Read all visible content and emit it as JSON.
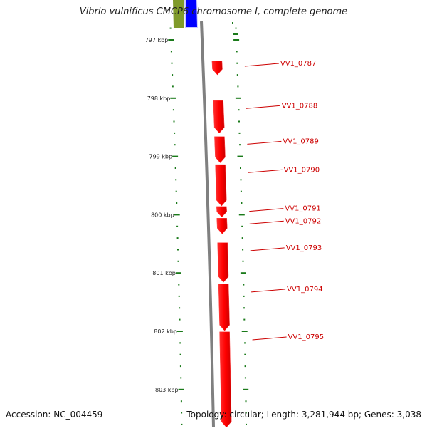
{
  "title": "Vibrio vulnificus CMCP6 chromosome I, complete genome",
  "accession": "Accession: NC_004459",
  "summary": "Topology: circular; Length: 3,281,944 bp; Genes: 3,038",
  "colors": {
    "gene": "#ff0000",
    "label": "#cc0000",
    "tick": "#1a7a1a",
    "backbone": "#808080",
    "feature_olive": "#7f9a2a",
    "feature_blue": "#0000ff",
    "feature_lightblue": "#c8c8ff"
  },
  "axis": {
    "unit": "kbp",
    "ticks": [
      {
        "kbp": 797,
        "label": "797 kbp"
      },
      {
        "kbp": 798,
        "label": "798 kbp"
      },
      {
        "kbp": 799,
        "label": "799 kbp"
      },
      {
        "kbp": 800,
        "label": "800 kbp"
      },
      {
        "kbp": 801,
        "label": "801 kbp"
      },
      {
        "kbp": 802,
        "label": "802 kbp"
      },
      {
        "kbp": 803,
        "label": "803 kbp"
      }
    ]
  },
  "genes": [
    {
      "label": "VV1_0787",
      "start_kbp": 797.36,
      "end_kbp": 797.6,
      "strand": "+"
    },
    {
      "label": "VV1_0788",
      "start_kbp": 798.04,
      "end_kbp": 798.6,
      "strand": "+"
    },
    {
      "label": "VV1_0789",
      "start_kbp": 798.66,
      "end_kbp": 799.11,
      "strand": "+"
    },
    {
      "label": "VV1_0790",
      "start_kbp": 799.14,
      "end_kbp": 799.85,
      "strand": "+"
    },
    {
      "label": "VV1_0791",
      "start_kbp": 799.86,
      "end_kbp": 800.04,
      "strand": "+"
    },
    {
      "label": "VV1_0792",
      "start_kbp": 800.06,
      "end_kbp": 800.33,
      "strand": "+"
    },
    {
      "label": "VV1_0793",
      "start_kbp": 800.48,
      "end_kbp": 801.16,
      "strand": "+"
    },
    {
      "label": "VV1_0794",
      "start_kbp": 801.19,
      "end_kbp": 801.99,
      "strand": "+"
    },
    {
      "label": "VV1_0795",
      "start_kbp": 802.01,
      "end_kbp": 803.65,
      "strand": "+"
    }
  ]
}
